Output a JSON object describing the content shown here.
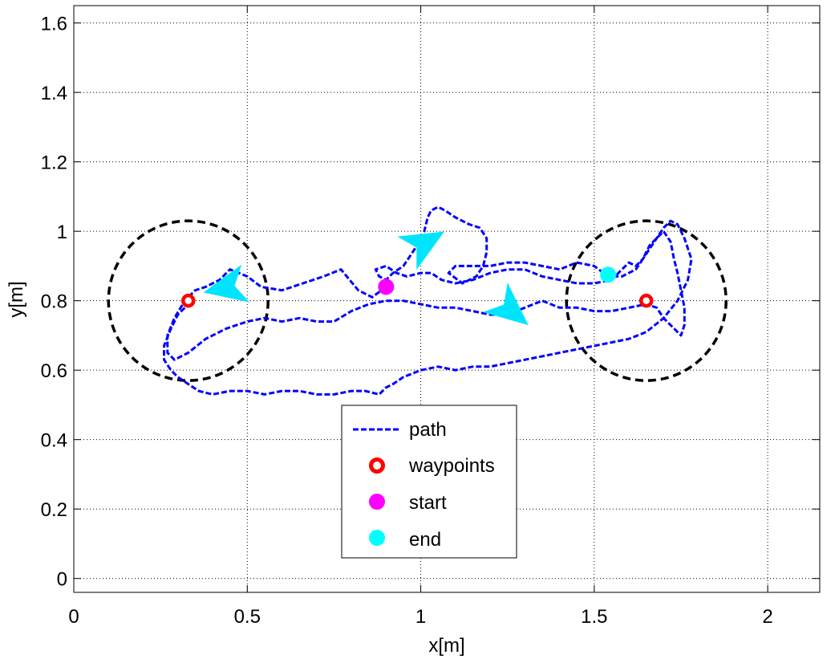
{
  "chart_data": {
    "type": "line",
    "title": "",
    "xlabel": "x[m]",
    "ylabel": "y[m]",
    "xlim": [
      0,
      2.15
    ],
    "ylim": [
      -0.04,
      1.65
    ],
    "xticks": [
      0,
      0.5,
      1,
      1.5,
      2
    ],
    "xtick_labels": [
      "0",
      "0.5",
      "1",
      "1.5",
      "2"
    ],
    "yticks": [
      0,
      0.2,
      0.4,
      0.6,
      0.8,
      1,
      1.2,
      1.4,
      1.6
    ],
    "ytick_labels": [
      "0",
      "0.2",
      "0.4",
      "0.6",
      "0.8",
      "1",
      "1.2",
      "1.4",
      "1.6"
    ],
    "grid": true,
    "legend_position": "bottom-center",
    "colors": {
      "path": "#0000ff",
      "waypoints": "#ff0000",
      "start": "#ff00ff",
      "end": "#00ffff",
      "arrow": "#00e5ff",
      "circle": "#000000"
    },
    "series": [
      {
        "name": "path",
        "style": "dashed-line",
        "points": [
          [
            0.9,
            0.84
          ],
          [
            0.86,
            0.81
          ],
          [
            0.82,
            0.83
          ],
          [
            0.77,
            0.89
          ],
          [
            0.72,
            0.87
          ],
          [
            0.66,
            0.85
          ],
          [
            0.6,
            0.83
          ],
          [
            0.54,
            0.84
          ],
          [
            0.5,
            0.87
          ],
          [
            0.45,
            0.89
          ],
          [
            0.42,
            0.86
          ],
          [
            0.38,
            0.84
          ],
          [
            0.35,
            0.83
          ],
          [
            0.32,
            0.8
          ],
          [
            0.29,
            0.75
          ],
          [
            0.27,
            0.7
          ],
          [
            0.27,
            0.65
          ],
          [
            0.29,
            0.63
          ],
          [
            0.33,
            0.65
          ],
          [
            0.38,
            0.69
          ],
          [
            0.44,
            0.72
          ],
          [
            0.5,
            0.74
          ],
          [
            0.55,
            0.75
          ],
          [
            0.6,
            0.74
          ],
          [
            0.65,
            0.75
          ],
          [
            0.7,
            0.74
          ],
          [
            0.75,
            0.74
          ],
          [
            0.8,
            0.77
          ],
          [
            0.85,
            0.79
          ],
          [
            0.9,
            0.8
          ],
          [
            0.95,
            0.8
          ],
          [
            1.0,
            0.79
          ],
          [
            1.05,
            0.78
          ],
          [
            1.1,
            0.78
          ],
          [
            1.15,
            0.77
          ],
          [
            1.2,
            0.76
          ],
          [
            1.25,
            0.76
          ],
          [
            1.3,
            0.78
          ],
          [
            1.35,
            0.8
          ],
          [
            1.4,
            0.78
          ],
          [
            1.45,
            0.78
          ],
          [
            1.5,
            0.77
          ],
          [
            1.55,
            0.77
          ],
          [
            1.6,
            0.78
          ],
          [
            1.65,
            0.79
          ],
          [
            1.68,
            0.78
          ],
          [
            1.7,
            0.75
          ],
          [
            1.73,
            0.72
          ],
          [
            1.75,
            0.7
          ],
          [
            1.76,
            0.73
          ],
          [
            1.76,
            0.78
          ],
          [
            1.75,
            0.83
          ],
          [
            1.74,
            0.88
          ],
          [
            1.73,
            0.92
          ],
          [
            1.72,
            0.97
          ],
          [
            1.7,
            1.0
          ],
          [
            1.68,
            0.98
          ],
          [
            1.66,
            0.96
          ],
          [
            1.64,
            0.92
          ],
          [
            1.62,
            0.89
          ],
          [
            1.58,
            0.87
          ],
          [
            1.54,
            0.87
          ],
          [
            1.5,
            0.9
          ],
          [
            1.45,
            0.91
          ],
          [
            1.4,
            0.89
          ],
          [
            1.35,
            0.9
          ],
          [
            1.3,
            0.91
          ],
          [
            1.25,
            0.91
          ],
          [
            1.2,
            0.9
          ],
          [
            1.15,
            0.9
          ],
          [
            1.1,
            0.9
          ],
          [
            1.08,
            0.88
          ],
          [
            1.12,
            0.85
          ],
          [
            1.16,
            0.87
          ],
          [
            1.18,
            0.9
          ],
          [
            1.19,
            0.94
          ],
          [
            1.19,
            0.98
          ],
          [
            1.17,
            1.01
          ],
          [
            1.14,
            1.02
          ],
          [
            1.1,
            1.04
          ],
          [
            1.07,
            1.06
          ],
          [
            1.05,
            1.07
          ],
          [
            1.03,
            1.06
          ],
          [
            1.02,
            1.04
          ],
          [
            1.01,
            1.0
          ],
          [
            0.99,
            0.96
          ],
          [
            0.97,
            0.93
          ],
          [
            0.95,
            0.9
          ],
          [
            0.92,
            0.88
          ],
          [
            0.9,
            0.86
          ],
          [
            0.88,
            0.87
          ],
          [
            0.87,
            0.89
          ],
          [
            0.9,
            0.9
          ],
          [
            0.93,
            0.88
          ],
          [
            0.96,
            0.87
          ],
          [
            1.0,
            0.88
          ],
          [
            1.03,
            0.88
          ],
          [
            1.06,
            0.86
          ],
          [
            1.1,
            0.85
          ],
          [
            1.15,
            0.86
          ],
          [
            1.2,
            0.88
          ],
          [
            1.25,
            0.89
          ],
          [
            1.3,
            0.89
          ],
          [
            1.35,
            0.87
          ],
          [
            1.4,
            0.86
          ],
          [
            1.45,
            0.85
          ],
          [
            1.5,
            0.85
          ],
          [
            1.55,
            0.86
          ],
          [
            1.58,
            0.89
          ],
          [
            1.6,
            0.91
          ],
          [
            1.62,
            0.9
          ],
          [
            1.64,
            0.92
          ],
          [
            1.66,
            0.95
          ],
          [
            1.68,
            0.98
          ],
          [
            1.7,
            1.01
          ],
          [
            1.72,
            1.03
          ],
          [
            1.74,
            1.02
          ],
          [
            1.76,
            0.98
          ],
          [
            1.78,
            0.92
          ],
          [
            1.77,
            0.86
          ],
          [
            1.74,
            0.8
          ],
          [
            1.7,
            0.75
          ],
          [
            1.65,
            0.71
          ],
          [
            1.6,
            0.69
          ],
          [
            1.55,
            0.68
          ],
          [
            1.5,
            0.67
          ],
          [
            1.45,
            0.66
          ],
          [
            1.4,
            0.65
          ],
          [
            1.35,
            0.64
          ],
          [
            1.3,
            0.63
          ],
          [
            1.25,
            0.62
          ],
          [
            1.2,
            0.61
          ],
          [
            1.15,
            0.61
          ],
          [
            1.1,
            0.6
          ],
          [
            1.05,
            0.61
          ],
          [
            1.0,
            0.6
          ],
          [
            0.95,
            0.58
          ],
          [
            0.92,
            0.56
          ],
          [
            0.9,
            0.55
          ],
          [
            0.88,
            0.53
          ],
          [
            0.84,
            0.54
          ],
          [
            0.8,
            0.54
          ],
          [
            0.75,
            0.53
          ],
          [
            0.7,
            0.53
          ],
          [
            0.65,
            0.54
          ],
          [
            0.6,
            0.54
          ],
          [
            0.55,
            0.53
          ],
          [
            0.5,
            0.54
          ],
          [
            0.45,
            0.54
          ],
          [
            0.4,
            0.53
          ],
          [
            0.36,
            0.54
          ],
          [
            0.33,
            0.56
          ],
          [
            0.3,
            0.58
          ],
          [
            0.28,
            0.6
          ],
          [
            0.26,
            0.63
          ],
          [
            0.26,
            0.67
          ],
          [
            0.28,
            0.72
          ],
          [
            0.3,
            0.76
          ],
          [
            0.33,
            0.79
          ]
        ]
      },
      {
        "name": "waypoints",
        "style": "marker",
        "points": [
          [
            0.33,
            0.8
          ],
          [
            1.65,
            0.8
          ]
        ]
      },
      {
        "name": "start",
        "style": "marker",
        "points": [
          [
            0.9,
            0.84
          ]
        ]
      },
      {
        "name": "end",
        "style": "marker",
        "points": [
          [
            1.54,
            0.875
          ]
        ]
      }
    ],
    "circles": [
      {
        "cx": 0.33,
        "cy": 0.8,
        "r": 0.23
      },
      {
        "cx": 1.65,
        "cy": 0.8,
        "r": 0.23
      }
    ],
    "direction_arrows": [
      {
        "x": 0.45,
        "y": 0.84,
        "angle_deg": 192
      },
      {
        "x": 1.0,
        "y": 0.96,
        "angle_deg": 30
      },
      {
        "x": 1.25,
        "y": 0.78,
        "angle_deg": -40
      }
    ],
    "legend": {
      "entries": [
        {
          "label": "path",
          "series": "path"
        },
        {
          "label": "waypoints",
          "series": "waypoints"
        },
        {
          "label": "start",
          "series": "start"
        },
        {
          "label": "end",
          "series": "end"
        }
      ]
    }
  }
}
